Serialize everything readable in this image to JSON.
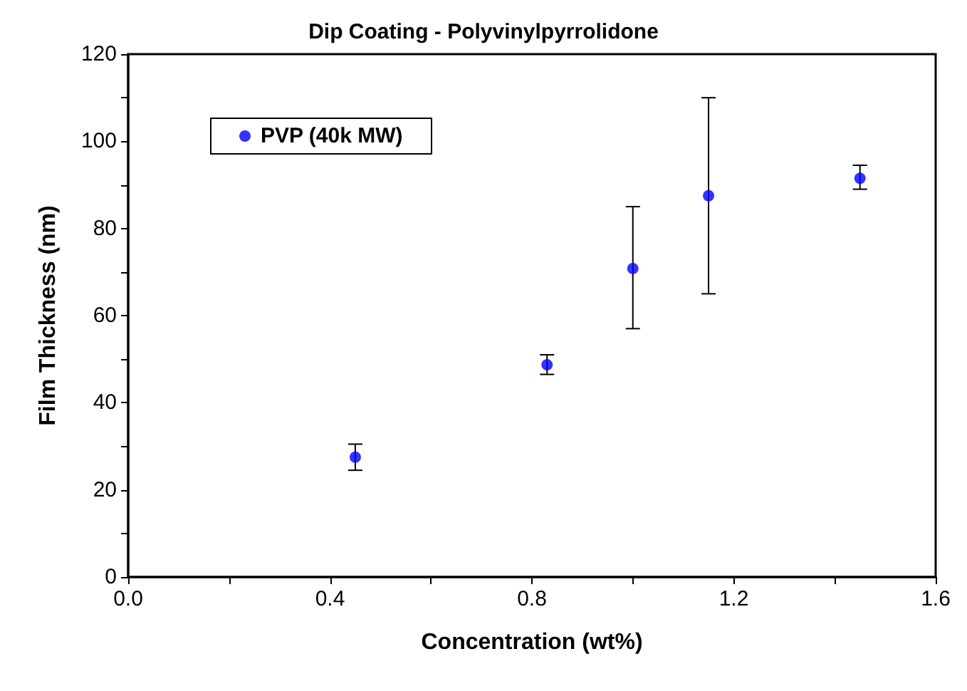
{
  "chart_data": {
    "type": "scatter",
    "title": "Dip Coating - Polyvinylpyrrolidone",
    "xlabel": "Concentration (wt%)",
    "ylabel": "Film Thickness (nm)",
    "x": [
      0.45,
      0.83,
      1.0,
      1.15,
      1.45
    ],
    "series": [
      {
        "name": "PVP (40k MW)",
        "color": "#0000ff",
        "values": [
          27.5,
          48.7,
          70.8,
          87.5,
          91.5
        ],
        "errors": [
          [
            24.5,
            30.5
          ],
          [
            46.5,
            51
          ],
          [
            57,
            85
          ],
          [
            65,
            110
          ],
          [
            89,
            94.5
          ]
        ]
      }
    ],
    "marker": "circle",
    "legend": "top left",
    "grid": false,
    "xlim": [
      0,
      1.6
    ],
    "xticks": [
      {
        "value": 0,
        "label": "0.0"
      },
      {
        "value": 0.2,
        "label": null
      },
      0.4,
      {
        "value": 0.6,
        "label": null
      },
      0.8,
      {
        "value": 1.0,
        "label": null
      },
      1.2,
      {
        "value": 1.4,
        "label": null
      },
      1.6
    ],
    "ylim": [
      0,
      120
    ],
    "yticks": [
      0,
      {
        "value": 10,
        "label": null
      },
      20,
      {
        "value": 30,
        "label": null
      },
      40,
      {
        "value": 50,
        "label": null
      },
      60,
      {
        "value": 70,
        "label": null
      },
      80,
      {
        "value": 90,
        "label": null
      },
      100,
      {
        "value": 110,
        "label": null
      },
      120
    ]
  }
}
